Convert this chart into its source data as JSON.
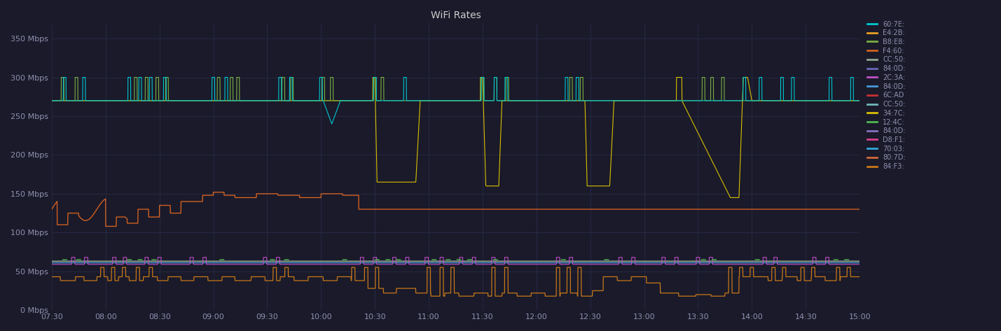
{
  "title": "WiFi Rates",
  "background_color": "#1a1a2a",
  "plot_bg_color": "#1a1a2a",
  "grid_color": "#2e2e4e",
  "text_color": "#9090b0",
  "title_color": "#cccccc",
  "x_start": 7.5,
  "x_end": 15.0,
  "y_min": 0,
  "y_max": 370,
  "yticks": [
    0,
    50,
    100,
    150,
    200,
    250,
    300,
    350
  ],
  "ylabel_suffix": " Mbps",
  "xtick_labels": [
    "07:30",
    "08:00",
    "08:30",
    "09:00",
    "09:30",
    "10:00",
    "10:30",
    "11:00",
    "11:30",
    "12:00",
    "12:30",
    "13:00",
    "13:30",
    "14:00",
    "14:30",
    "15:00"
  ],
  "xtick_values": [
    7.5,
    8.0,
    8.5,
    9.0,
    9.5,
    10.0,
    10.5,
    11.0,
    11.5,
    12.0,
    12.5,
    13.0,
    13.5,
    14.0,
    14.5,
    15.0
  ],
  "legend_entries": [
    {
      "label": "60:7E:",
      "color": "#00c8d0"
    },
    {
      "label": "E4:2B:",
      "color": "#e8a020"
    },
    {
      "label": "B8:E8:",
      "color": "#78b040"
    },
    {
      "label": "F4:60:",
      "color": "#d06020"
    },
    {
      "label": "CC:50:",
      "color": "#90a890"
    },
    {
      "label": "84:0D:",
      "color": "#6868b8"
    },
    {
      "label": "2C:3A:",
      "color": "#c050c8"
    },
    {
      "label": "84:0D:",
      "color": "#4898d8"
    },
    {
      "label": "6C:AD",
      "color": "#c83030"
    },
    {
      "label": "CC:50:",
      "color": "#70b8b8"
    },
    {
      "label": "34:7C:",
      "color": "#d8c000"
    },
    {
      "label": "12:4C:",
      "color": "#50b850"
    },
    {
      "label": "84:0D:",
      "color": "#8870c0"
    },
    {
      "label": "D8:F1:",
      "color": "#d84090"
    },
    {
      "label": "70:03:",
      "color": "#30a8d8"
    },
    {
      "label": "80:7D:",
      "color": "#d06838"
    },
    {
      "label": "84:F3:",
      "color": "#c87818"
    }
  ]
}
